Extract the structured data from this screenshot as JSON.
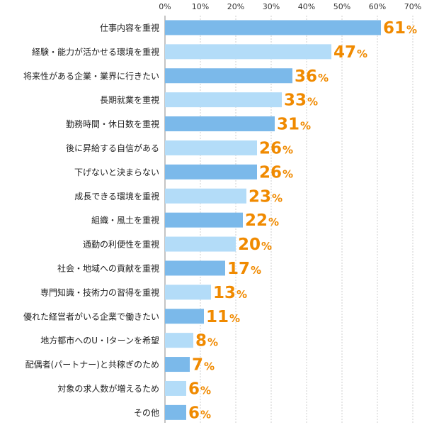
{
  "chart_data": {
    "type": "bar",
    "orientation": "horizontal",
    "categories": [
      "仕事内容を重視",
      "経験・能力が活かせる環境を重視",
      "将来性がある企業・業界に行きたい",
      "長期就業を重視",
      "勤務時間・休日数を重視",
      "後に昇給する自信がある",
      "下げないと決まらない",
      "成長できる環境を重視",
      "組織・風土を重視",
      "通勤の利便性を重視",
      "社会・地域への貢献を重視",
      "専門知識・技術力の習得を重視",
      "優れた経営者がいる企業で働きたい",
      "地方都市へのU・Iターンを希望",
      "配偶者(パートナー)と共稼ぎのため",
      "対象の求人数が増えるため",
      "その他"
    ],
    "values": [
      61,
      47,
      36,
      33,
      31,
      26,
      26,
      23,
      22,
      20,
      17,
      13,
      11,
      8,
      7,
      6,
      6
    ],
    "value_unit": "%",
    "xlim": [
      0,
      70
    ],
    "xticks": [
      "0%",
      "10%",
      "20%",
      "30%",
      "40%",
      "50%",
      "60%",
      "70%"
    ],
    "axis_position": "top",
    "grid": true,
    "colors": {
      "bar_dark": "#7bb9ea",
      "bar_light": "#b3dcf8",
      "label": "#f08a00",
      "grid": "#cfcfcf",
      "axis": "#888888"
    }
  }
}
